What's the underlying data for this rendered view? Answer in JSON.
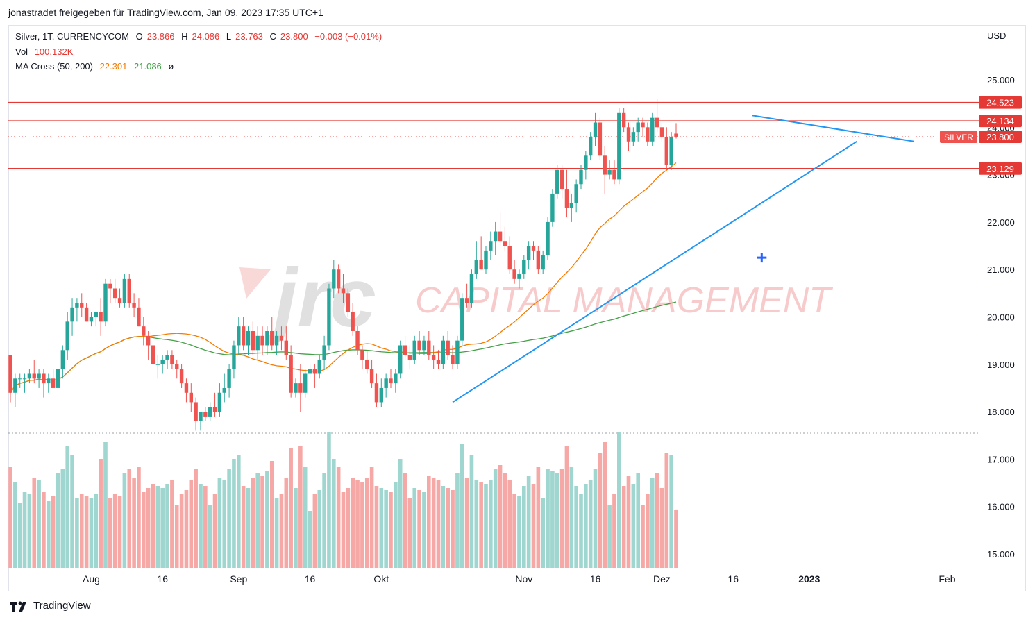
{
  "header": {
    "share_text": "jonastradet freigegeben für TradingView.com, Jan 09, 2023 17:35 UTC+1"
  },
  "legend": {
    "symbol": "Silver, 1T, CURRENCYCOM",
    "o_label": "O",
    "o_value": "23.866",
    "h_label": "H",
    "h_value": "24.086",
    "l_label": "L",
    "l_value": "23.763",
    "c_label": "C",
    "c_value": "23.800",
    "change": "−0.003 (−0.01%)",
    "vol_label": "Vol",
    "vol_value": "100.132K",
    "ma_label": "MA Cross (50, 200)",
    "ma50_value": "22.301",
    "ma200_value": "21.086",
    "ma_symbol": "ø"
  },
  "watermark": {
    "logo": "jrc",
    "text": "CAPITAL MANAGEMENT"
  },
  "footer": {
    "brand": "TradingView",
    "brand_icon": "tradingview-logo-icon"
  },
  "colors": {
    "up": "#26a69a",
    "down": "#ef5350",
    "level_line": "#e53935",
    "trend": "#2196f3",
    "ma50": "#f57c00",
    "ma200": "#43a047"
  },
  "chart_data": {
    "type": "candlestick",
    "currency": "USD",
    "ylim": [
      14.7,
      25.6
    ],
    "y_ticks": [
      "15.000",
      "16.000",
      "17.000",
      "18.000",
      "19.000",
      "20.000",
      "21.000",
      "22.000",
      "23.000",
      "24.000",
      "25.000"
    ],
    "x_labels": [
      {
        "label": "Aug",
        "i": 17,
        "bold": false
      },
      {
        "label": "16",
        "i": 32,
        "bold": false
      },
      {
        "label": "Sep",
        "i": 48,
        "bold": false
      },
      {
        "label": "16",
        "i": 63,
        "bold": false
      },
      {
        "label": "Okt",
        "i": 78,
        "bold": false
      },
      {
        "label": "Nov",
        "i": 108,
        "bold": false
      },
      {
        "label": "16",
        "i": 123,
        "bold": false
      },
      {
        "label": "Dez",
        "i": 137,
        "bold": false
      },
      {
        "label": "16",
        "i": 152,
        "bold": false
      },
      {
        "label": "2023",
        "i": 168,
        "bold": true
      },
      {
        "label": "Feb",
        "i": 197,
        "bold": false
      }
    ],
    "price_labels": [
      {
        "label": "24.523",
        "value": 24.523,
        "kind": "level"
      },
      {
        "label": "24.134",
        "value": 24.134,
        "kind": "level"
      },
      {
        "label": "23.800",
        "value": 23.8,
        "kind": "last",
        "tag": "SILVER"
      },
      {
        "label": "23.129",
        "value": 23.129,
        "kind": "level"
      }
    ],
    "levels": [
      24.523,
      24.134,
      23.129
    ],
    "last_price": 23.8,
    "trendlines": [
      {
        "name": "support",
        "from": {
          "i": 93,
          "v": 18.2
        },
        "to": {
          "i": 178,
          "v": 23.7
        }
      },
      {
        "name": "resistance",
        "from": {
          "i": 156,
          "v": 24.25
        },
        "to": {
          "i": 190,
          "v": 23.7
        }
      }
    ],
    "cross_marker": {
      "i": 158,
      "v": 21.25
    },
    "candles": [
      [
        19.2,
        19.2,
        18.2,
        18.4
      ],
      [
        18.4,
        18.8,
        18.1,
        18.7
      ],
      [
        18.7,
        18.8,
        18.5,
        18.7
      ],
      [
        18.7,
        18.8,
        18.4,
        18.7
      ],
      [
        18.7,
        18.9,
        18.6,
        18.8
      ],
      [
        18.8,
        19.1,
        18.6,
        18.7
      ],
      [
        18.7,
        18.9,
        18.5,
        18.8
      ],
      [
        18.8,
        18.9,
        18.3,
        18.6
      ],
      [
        18.6,
        18.8,
        18.4,
        18.7
      ],
      [
        18.7,
        18.9,
        18.5,
        18.5
      ],
      [
        18.5,
        19.0,
        18.3,
        18.9
      ],
      [
        18.9,
        19.4,
        18.7,
        19.3
      ],
      [
        19.3,
        20.1,
        19.1,
        19.9
      ],
      [
        19.9,
        20.4,
        19.6,
        20.2
      ],
      [
        20.2,
        20.4,
        19.9,
        20.3
      ],
      [
        20.3,
        20.5,
        20.0,
        20.2
      ],
      [
        20.2,
        20.3,
        19.9,
        19.9
      ],
      [
        19.9,
        20.1,
        19.8,
        20.0
      ],
      [
        20.0,
        20.1,
        19.8,
        20.1
      ],
      [
        20.1,
        20.4,
        19.6,
        19.9
      ],
      [
        19.9,
        20.8,
        19.8,
        20.7
      ],
      [
        20.7,
        20.8,
        20.3,
        20.6
      ],
      [
        20.6,
        20.8,
        20.3,
        20.4
      ],
      [
        20.4,
        20.6,
        20.2,
        20.3
      ],
      [
        20.3,
        20.9,
        20.2,
        20.8
      ],
      [
        20.8,
        20.9,
        20.2,
        20.3
      ],
      [
        20.3,
        20.5,
        20.0,
        20.2
      ],
      [
        20.2,
        20.4,
        19.8,
        19.8
      ],
      [
        19.8,
        20.0,
        19.4,
        19.6
      ],
      [
        19.6,
        19.7,
        19.1,
        19.4
      ],
      [
        19.4,
        19.5,
        18.9,
        19.0
      ],
      [
        19.0,
        19.2,
        18.7,
        19.0
      ],
      [
        19.0,
        19.2,
        18.8,
        19.1
      ],
      [
        19.1,
        19.3,
        18.9,
        19.2
      ],
      [
        19.2,
        19.3,
        18.9,
        19.0
      ],
      [
        19.0,
        19.1,
        18.7,
        18.9
      ],
      [
        18.9,
        19.0,
        18.5,
        18.6
      ],
      [
        18.6,
        18.7,
        18.2,
        18.4
      ],
      [
        18.4,
        18.6,
        18.0,
        18.2
      ],
      [
        18.2,
        18.3,
        17.6,
        17.8
      ],
      [
        17.8,
        18.0,
        17.6,
        18.0
      ],
      [
        18.0,
        18.1,
        17.8,
        17.9
      ],
      [
        17.9,
        18.2,
        17.8,
        18.1
      ],
      [
        18.1,
        18.4,
        17.9,
        18.0
      ],
      [
        18.0,
        18.6,
        17.9,
        18.4
      ],
      [
        18.4,
        18.8,
        18.2,
        18.5
      ],
      [
        18.5,
        19.0,
        18.3,
        18.9
      ],
      [
        18.9,
        19.5,
        18.7,
        19.4
      ],
      [
        19.4,
        20.0,
        19.2,
        19.8
      ],
      [
        19.8,
        20.0,
        19.3,
        19.4
      ],
      [
        19.4,
        19.8,
        19.2,
        19.7
      ],
      [
        19.7,
        19.9,
        19.2,
        19.3
      ],
      [
        19.3,
        19.8,
        19.1,
        19.6
      ],
      [
        19.6,
        19.8,
        19.2,
        19.4
      ],
      [
        19.4,
        19.8,
        19.2,
        19.7
      ],
      [
        19.7,
        20.0,
        19.3,
        19.4
      ],
      [
        19.4,
        19.7,
        19.2,
        19.6
      ],
      [
        19.6,
        19.8,
        19.3,
        19.5
      ],
      [
        19.5,
        19.8,
        19.1,
        19.2
      ],
      [
        19.2,
        19.4,
        18.3,
        18.4
      ],
      [
        18.4,
        18.7,
        18.3,
        18.6
      ],
      [
        18.6,
        19.0,
        18.0,
        18.4
      ],
      [
        18.4,
        18.9,
        18.3,
        18.8
      ],
      [
        18.8,
        19.0,
        18.7,
        18.9
      ],
      [
        18.9,
        19.0,
        18.5,
        18.8
      ],
      [
        18.8,
        19.2,
        18.7,
        19.1
      ],
      [
        19.1,
        19.6,
        18.9,
        19.4
      ],
      [
        19.4,
        20.7,
        19.3,
        20.6
      ],
      [
        20.6,
        21.2,
        20.4,
        21.0
      ],
      [
        21.0,
        21.1,
        20.5,
        20.6
      ],
      [
        20.6,
        20.9,
        20.3,
        20.5
      ],
      [
        20.5,
        20.6,
        20.0,
        20.1
      ],
      [
        20.1,
        20.3,
        19.6,
        19.7
      ],
      [
        19.7,
        19.8,
        19.2,
        19.3
      ],
      [
        19.3,
        19.4,
        18.9,
        19.1
      ],
      [
        19.1,
        19.3,
        18.8,
        18.9
      ],
      [
        18.9,
        19.1,
        18.5,
        18.6
      ],
      [
        18.6,
        18.8,
        18.1,
        18.2
      ],
      [
        18.2,
        18.7,
        18.1,
        18.5
      ],
      [
        18.5,
        18.8,
        18.3,
        18.7
      ],
      [
        18.7,
        18.9,
        18.5,
        18.6
      ],
      [
        18.6,
        18.9,
        18.4,
        18.8
      ],
      [
        18.8,
        19.5,
        18.7,
        19.4
      ],
      [
        19.4,
        19.6,
        19.1,
        19.2
      ],
      [
        19.2,
        19.4,
        18.9,
        19.1
      ],
      [
        19.1,
        19.6,
        19.0,
        19.5
      ],
      [
        19.5,
        19.7,
        19.2,
        19.3
      ],
      [
        19.3,
        19.6,
        19.2,
        19.5
      ],
      [
        19.5,
        19.7,
        19.1,
        19.2
      ],
      [
        19.2,
        19.4,
        18.9,
        19.1
      ],
      [
        19.1,
        19.3,
        18.9,
        19.0
      ],
      [
        19.0,
        19.6,
        18.9,
        19.5
      ],
      [
        19.5,
        19.7,
        19.1,
        19.2
      ],
      [
        19.2,
        19.4,
        18.9,
        19.0
      ],
      [
        19.0,
        19.6,
        18.9,
        19.5
      ],
      [
        19.5,
        20.5,
        19.4,
        20.4
      ],
      [
        20.4,
        20.7,
        20.2,
        20.3
      ],
      [
        20.3,
        21.0,
        20.2,
        20.9
      ],
      [
        20.9,
        21.6,
        20.8,
        21.2
      ],
      [
        21.2,
        21.7,
        21.0,
        21.0
      ],
      [
        21.0,
        21.5,
        20.9,
        21.4
      ],
      [
        21.4,
        21.8,
        21.2,
        21.6
      ],
      [
        21.6,
        22.0,
        21.3,
        21.8
      ],
      [
        21.8,
        22.2,
        21.5,
        21.6
      ],
      [
        21.6,
        21.9,
        21.4,
        21.5
      ],
      [
        21.5,
        21.7,
        20.9,
        21.0
      ],
      [
        21.0,
        21.2,
        20.7,
        20.8
      ],
      [
        20.8,
        21.0,
        20.6,
        20.9
      ],
      [
        20.9,
        21.3,
        20.8,
        21.2
      ],
      [
        21.2,
        21.6,
        21.0,
        21.5
      ],
      [
        21.5,
        21.6,
        21.2,
        21.4
      ],
      [
        21.4,
        21.5,
        20.9,
        21.0
      ],
      [
        21.0,
        21.4,
        20.9,
        21.3
      ],
      [
        21.3,
        22.1,
        21.2,
        22.0
      ],
      [
        22.0,
        22.7,
        21.9,
        22.6
      ],
      [
        22.6,
        23.2,
        22.5,
        23.1
      ],
      [
        23.1,
        23.2,
        22.5,
        22.7
      ],
      [
        22.7,
        23.1,
        22.1,
        22.3
      ],
      [
        22.3,
        22.6,
        22.0,
        22.4
      ],
      [
        22.4,
        22.9,
        22.2,
        22.8
      ],
      [
        22.8,
        23.2,
        22.7,
        23.1
      ],
      [
        23.1,
        23.5,
        22.9,
        23.4
      ],
      [
        23.4,
        23.9,
        23.3,
        23.8
      ],
      [
        23.8,
        24.3,
        23.6,
        24.1
      ],
      [
        24.1,
        24.2,
        23.3,
        23.4
      ],
      [
        23.4,
        23.6,
        22.6,
        23.0
      ],
      [
        23.0,
        23.3,
        22.9,
        23.1
      ],
      [
        23.1,
        23.3,
        22.8,
        22.9
      ],
      [
        22.9,
        24.4,
        22.8,
        24.3
      ],
      [
        24.3,
        24.4,
        23.9,
        24.0
      ],
      [
        24.0,
        24.1,
        23.5,
        23.7
      ],
      [
        23.7,
        24.0,
        23.6,
        23.9
      ],
      [
        23.9,
        24.2,
        23.7,
        24.1
      ],
      [
        24.1,
        24.2,
        23.8,
        24.0
      ],
      [
        24.0,
        24.1,
        23.6,
        23.7
      ],
      [
        23.7,
        24.3,
        23.6,
        24.2
      ],
      [
        24.2,
        24.6,
        23.9,
        24.0
      ],
      [
        24.0,
        24.1,
        23.7,
        23.8
      ],
      [
        23.8,
        24.0,
        23.1,
        23.2
      ],
      [
        23.2,
        23.9,
        23.1,
        23.8
      ],
      [
        23.866,
        24.086,
        23.763,
        23.8
      ]
    ],
    "volume_max": 17.6
  }
}
